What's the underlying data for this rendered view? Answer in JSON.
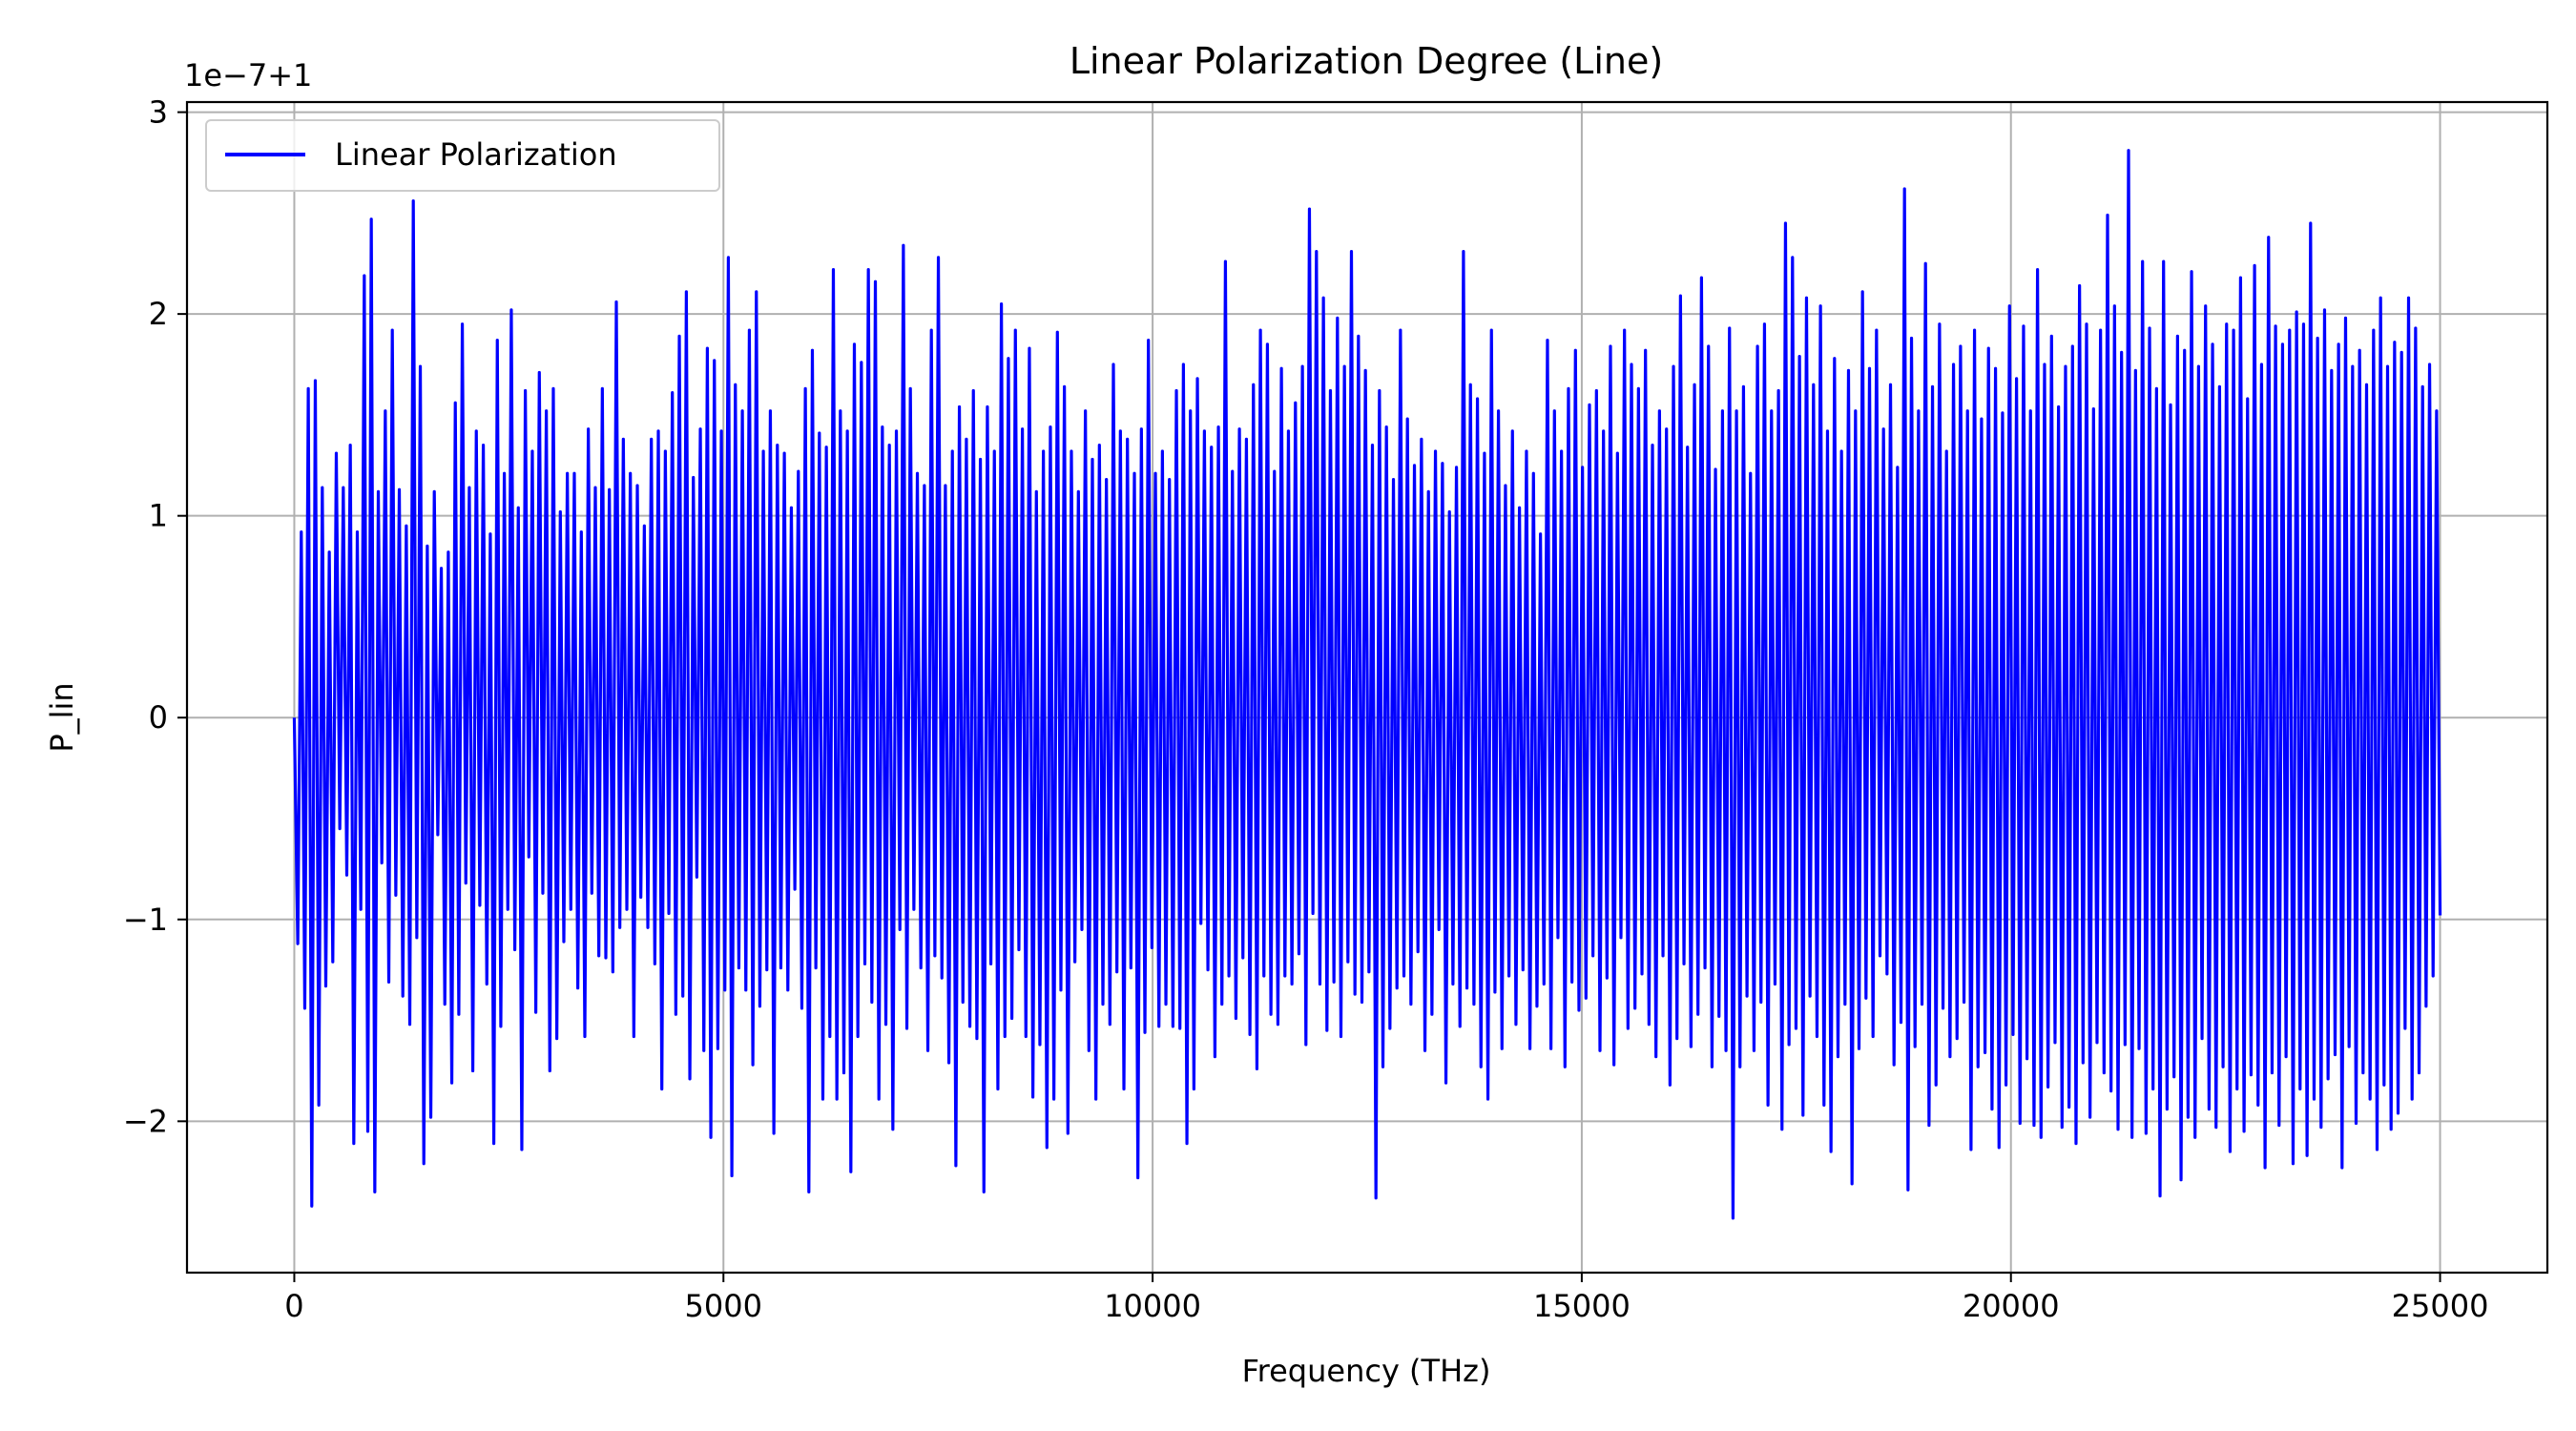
{
  "chart_data": {
    "type": "line",
    "title": "Linear Polarization Degree (Line)",
    "xlabel": "Frequency (THz)",
    "ylabel": "P_lin",
    "y_offset_label": "1e−7+1",
    "xlim": [
      -1250,
      26250
    ],
    "ylim": [
      -2.75,
      3.05
    ],
    "x_ticks": [
      0,
      5000,
      10000,
      15000,
      20000,
      25000
    ],
    "x_tick_labels": [
      "0",
      "5000",
      "10000",
      "15000",
      "20000",
      "25000"
    ],
    "y_ticks": [
      -2,
      -1,
      0,
      1,
      2,
      3
    ],
    "y_tick_labels": [
      "−2",
      "−1",
      "0",
      "1",
      "2",
      "3"
    ],
    "grid": true,
    "legend": {
      "placement": "upper-left",
      "entries": [
        "Linear Polarization"
      ]
    },
    "series": [
      {
        "name": "Linear Polarization",
        "color": "#0000ff",
        "x_start": 0,
        "x_end": 25000,
        "values": [
          0.0,
          -1.12,
          0.92,
          -1.44,
          1.63,
          -2.42,
          1.67,
          -1.92,
          1.14,
          -1.33,
          0.82,
          -1.21,
          1.31,
          -0.55,
          1.14,
          -0.78,
          1.35,
          -2.11,
          0.92,
          -0.95,
          2.19,
          -2.05,
          2.47,
          -2.35,
          1.12,
          -0.72,
          1.52,
          -1.31,
          1.92,
          -0.88,
          1.13,
          -1.38,
          0.95,
          -1.52,
          2.56,
          -1.09,
          1.74,
          -2.21,
          0.85,
          -1.98,
          1.12,
          -0.58,
          0.74,
          -1.42,
          0.82,
          -1.81,
          1.56,
          -1.47,
          1.95,
          -0.82,
          1.14,
          -1.75,
          1.42,
          -0.93,
          1.35,
          -1.32,
          0.91,
          -2.11,
          1.87,
          -1.53,
          1.21,
          -0.95,
          2.02,
          -1.15,
          1.04,
          -2.14,
          1.62,
          -0.69,
          1.32,
          -1.46,
          1.71,
          -0.87,
          1.52,
          -1.75,
          1.63,
          -1.59,
          1.02,
          -1.11,
          1.21,
          -0.95,
          1.21,
          -1.34,
          0.92,
          -1.58,
          1.43,
          -0.87,
          1.14,
          -1.18,
          1.63,
          -1.19,
          1.13,
          -1.26,
          2.06,
          -1.04,
          1.38,
          -0.95,
          1.21,
          -1.58,
          1.15,
          -0.89,
          0.95,
          -1.04,
          1.38,
          -1.22,
          1.42,
          -1.84,
          1.32,
          -0.97,
          1.61,
          -1.47,
          1.89,
          -1.38,
          2.11,
          -1.79,
          1.19,
          -0.79,
          1.43,
          -1.65,
          1.83,
          -2.08,
          1.77,
          -1.64,
          1.42,
          -1.35,
          2.28,
          -2.27,
          1.65,
          -1.24,
          1.52,
          -1.35,
          1.92,
          -1.72,
          2.11,
          -1.43,
          1.32,
          -1.25,
          1.52,
          -2.06,
          1.35,
          -1.24,
          1.31,
          -1.35,
          1.04,
          -0.85,
          1.22,
          -1.44,
          1.63,
          -2.35,
          1.82,
          -1.24,
          1.41,
          -1.89,
          1.34,
          -1.58,
          2.22,
          -1.89,
          1.52,
          -1.76,
          1.42,
          -2.25,
          1.85,
          -1.58,
          1.76,
          -1.22,
          2.22,
          -1.41,
          2.16,
          -1.89,
          1.44,
          -1.52,
          1.35,
          -2.04,
          1.42,
          -1.05,
          2.34,
          -1.54,
          1.63,
          -0.95,
          1.21,
          -1.24,
          1.15,
          -1.65,
          1.92,
          -1.18,
          2.28,
          -1.29,
          1.15,
          -1.71,
          1.32,
          -2.22,
          1.54,
          -1.41,
          1.38,
          -1.53,
          1.62,
          -1.59,
          1.28,
          -2.35,
          1.54,
          -1.22,
          1.32,
          -1.84,
          2.05,
          -1.58,
          1.78,
          -1.49,
          1.92,
          -1.15,
          1.43,
          -1.58,
          1.83,
          -1.88,
          1.12,
          -1.62,
          1.32,
          -2.13,
          1.44,
          -1.89,
          1.91,
          -1.35,
          1.64,
          -2.06,
          1.32,
          -1.21,
          1.12,
          -1.05,
          1.52,
          -1.65,
          1.28,
          -1.89,
          1.35,
          -1.42,
          1.18,
          -1.52,
          1.75,
          -1.26,
          1.42,
          -1.84,
          1.38,
          -1.24,
          1.21,
          -2.28,
          1.43,
          -1.56,
          1.87,
          -1.14,
          1.21,
          -1.53,
          1.32,
          -1.42,
          1.18,
          -1.53,
          1.62,
          -1.54,
          1.75,
          -2.11,
          1.52,
          -1.84,
          1.68,
          -1.02,
          1.42,
          -1.25,
          1.34,
          -1.68,
          1.44,
          -1.42,
          2.26,
          -1.28,
          1.22,
          -1.49,
          1.43,
          -1.19,
          1.38,
          -1.57,
          1.65,
          -1.74,
          1.92,
          -1.28,
          1.85,
          -1.47,
          1.22,
          -1.52,
          1.73,
          -1.28,
          1.42,
          -1.32,
          1.56,
          -1.17,
          1.74,
          -1.62,
          2.52,
          -0.97,
          2.31,
          -1.32,
          2.08,
          -1.55,
          1.62,
          -1.31,
          1.98,
          -1.58,
          1.74,
          -1.21,
          2.31,
          -1.37,
          1.89,
          -1.41,
          1.72,
          -1.26,
          1.35,
          -2.38,
          1.62,
          -1.73,
          1.44,
          -1.54,
          1.18,
          -1.34,
          1.92,
          -1.28,
          1.48,
          -1.42,
          1.25,
          -1.16,
          1.38,
          -1.65,
          1.12,
          -1.47,
          1.32,
          -1.05,
          1.26,
          -1.81,
          1.02,
          -1.32,
          1.24,
          -1.53,
          2.31,
          -1.34,
          1.65,
          -1.42,
          1.58,
          -1.73,
          1.31,
          -1.89,
          1.92,
          -1.36,
          1.52,
          -1.64,
          1.15,
          -1.28,
          1.42,
          -1.52,
          1.04,
          -1.25,
          1.32,
          -1.64,
          1.21,
          -1.43,
          0.91,
          -1.32,
          1.87,
          -1.64,
          1.52,
          -1.09,
          1.32,
          -1.73,
          1.63,
          -1.31,
          1.82,
          -1.45,
          1.24,
          -1.39,
          1.55,
          -1.18,
          1.62,
          -1.65,
          1.42,
          -1.29,
          1.84,
          -1.72,
          1.31,
          -1.09,
          1.92,
          -1.54,
          1.75,
          -1.44,
          1.63,
          -1.27,
          1.82,
          -1.52,
          1.35,
          -1.68,
          1.52,
          -1.18,
          1.43,
          -1.82,
          1.74,
          -1.59,
          2.09,
          -1.22,
          1.34,
          -1.63,
          1.65,
          -1.47,
          2.18,
          -1.24,
          1.84,
          -1.73,
          1.23,
          -1.48,
          1.52,
          -1.65,
          1.93,
          -2.48,
          1.52,
          -1.73,
          1.64,
          -1.38,
          1.21,
          -1.65,
          1.84,
          -1.41,
          1.95,
          -1.92,
          1.52,
          -1.32,
          1.62,
          -2.04,
          2.45,
          -1.62,
          2.28,
          -1.54,
          1.79,
          -1.97,
          2.08,
          -1.38,
          1.65,
          -1.58,
          2.04,
          -1.92,
          1.42,
          -2.15,
          1.78,
          -1.68,
          1.32,
          -1.42,
          1.72,
          -2.31,
          1.52,
          -1.64,
          2.11,
          -1.39,
          1.73,
          -1.58,
          1.92,
          -1.18,
          1.43,
          -1.27,
          1.65,
          -1.72,
          1.24,
          -1.51,
          2.62,
          -2.34,
          1.88,
          -1.63,
          1.52,
          -1.42,
          2.25,
          -2.02,
          1.64,
          -1.82,
          1.95,
          -1.44,
          1.32,
          -1.68,
          1.75,
          -1.59,
          1.84,
          -1.41,
          1.52,
          -2.14,
          1.92,
          -1.73,
          1.48,
          -1.66,
          1.83,
          -1.94,
          1.73,
          -2.13,
          1.51,
          -1.82,
          2.04,
          -1.57,
          1.68,
          -2.01,
          1.94,
          -1.69,
          1.52,
          -2.02,
          2.22,
          -2.08,
          1.75,
          -1.83,
          1.89,
          -1.61,
          1.54,
          -2.03,
          1.74,
          -1.93,
          1.84,
          -2.11,
          2.14,
          -1.71,
          1.95,
          -1.98,
          1.53,
          -1.61,
          1.92,
          -1.76,
          2.49,
          -1.85,
          2.04,
          -2.04,
          1.81,
          -1.62,
          2.81,
          -2.08,
          1.72,
          -1.64,
          2.26,
          -2.06,
          1.93,
          -1.84,
          1.63,
          -2.37,
          2.26,
          -1.94,
          1.55,
          -1.78,
          1.89,
          -2.29,
          1.82,
          -1.98,
          2.21,
          -2.08,
          1.74,
          -1.59,
          2.04,
          -1.94,
          1.85,
          -2.03,
          1.64,
          -1.73,
          1.95,
          -2.15,
          1.92,
          -1.84,
          2.18,
          -2.05,
          1.58,
          -1.77,
          2.24,
          -1.92,
          1.75,
          -2.23,
          2.38,
          -1.76,
          1.94,
          -2.02,
          1.85,
          -1.68,
          1.92,
          -2.21,
          2.01,
          -1.84,
          1.95,
          -2.17,
          2.45,
          -1.89,
          1.88,
          -2.03,
          2.02,
          -1.79,
          1.72,
          -1.67,
          1.85,
          -2.23,
          1.98,
          -1.63,
          1.74,
          -2.01,
          1.82,
          -1.76,
          1.65,
          -1.89,
          1.92,
          -2.14,
          2.08,
          -1.82,
          1.74,
          -2.04,
          1.86,
          -1.96,
          1.81,
          -1.54,
          2.08,
          -1.89,
          1.93,
          -1.76,
          1.64,
          -1.43,
          1.75,
          -1.28,
          1.52,
          -0.98
        ]
      }
    ]
  }
}
